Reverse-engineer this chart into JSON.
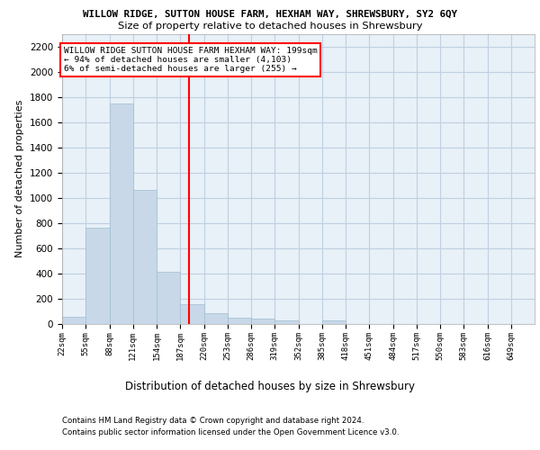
{
  "title": "WILLOW RIDGE, SUTTON HOUSE FARM, HEXHAM WAY, SHREWSBURY, SY2 6QY",
  "subtitle": "Size of property relative to detached houses in Shrewsbury",
  "xlabel": "Distribution of detached houses by size in Shrewsbury",
  "ylabel": "Number of detached properties",
  "bar_color": "#c8d8e8",
  "bar_edge_color": "#a0bfd0",
  "grid_color": "#c0d0e0",
  "bg_color": "#e8f0f8",
  "vline_x": 199,
  "vline_color": "red",
  "annotation_text": "WILLOW RIDGE SUTTON HOUSE FARM HEXHAM WAY: 199sqm\n← 94% of detached houses are smaller (4,103)\n6% of semi-detached houses are larger (255) →",
  "annotation_box_color": "white",
  "annotation_box_edge": "red",
  "bin_edges": [
    22,
    55,
    88,
    121,
    154,
    187,
    220,
    253,
    286,
    319,
    352,
    385,
    418,
    451,
    484,
    517,
    550,
    583,
    616,
    649,
    682
  ],
  "bin_heights": [
    55,
    760,
    1750,
    1065,
    415,
    155,
    85,
    50,
    45,
    30,
    0,
    25,
    0,
    0,
    0,
    0,
    0,
    0,
    0,
    0
  ],
  "ylim": [
    0,
    2300
  ],
  "yticks": [
    0,
    200,
    400,
    600,
    800,
    1000,
    1200,
    1400,
    1600,
    1800,
    2000,
    2200
  ],
  "footer_line1": "Contains HM Land Registry data © Crown copyright and database right 2024.",
  "footer_line2": "Contains public sector information licensed under the Open Government Licence v3.0."
}
